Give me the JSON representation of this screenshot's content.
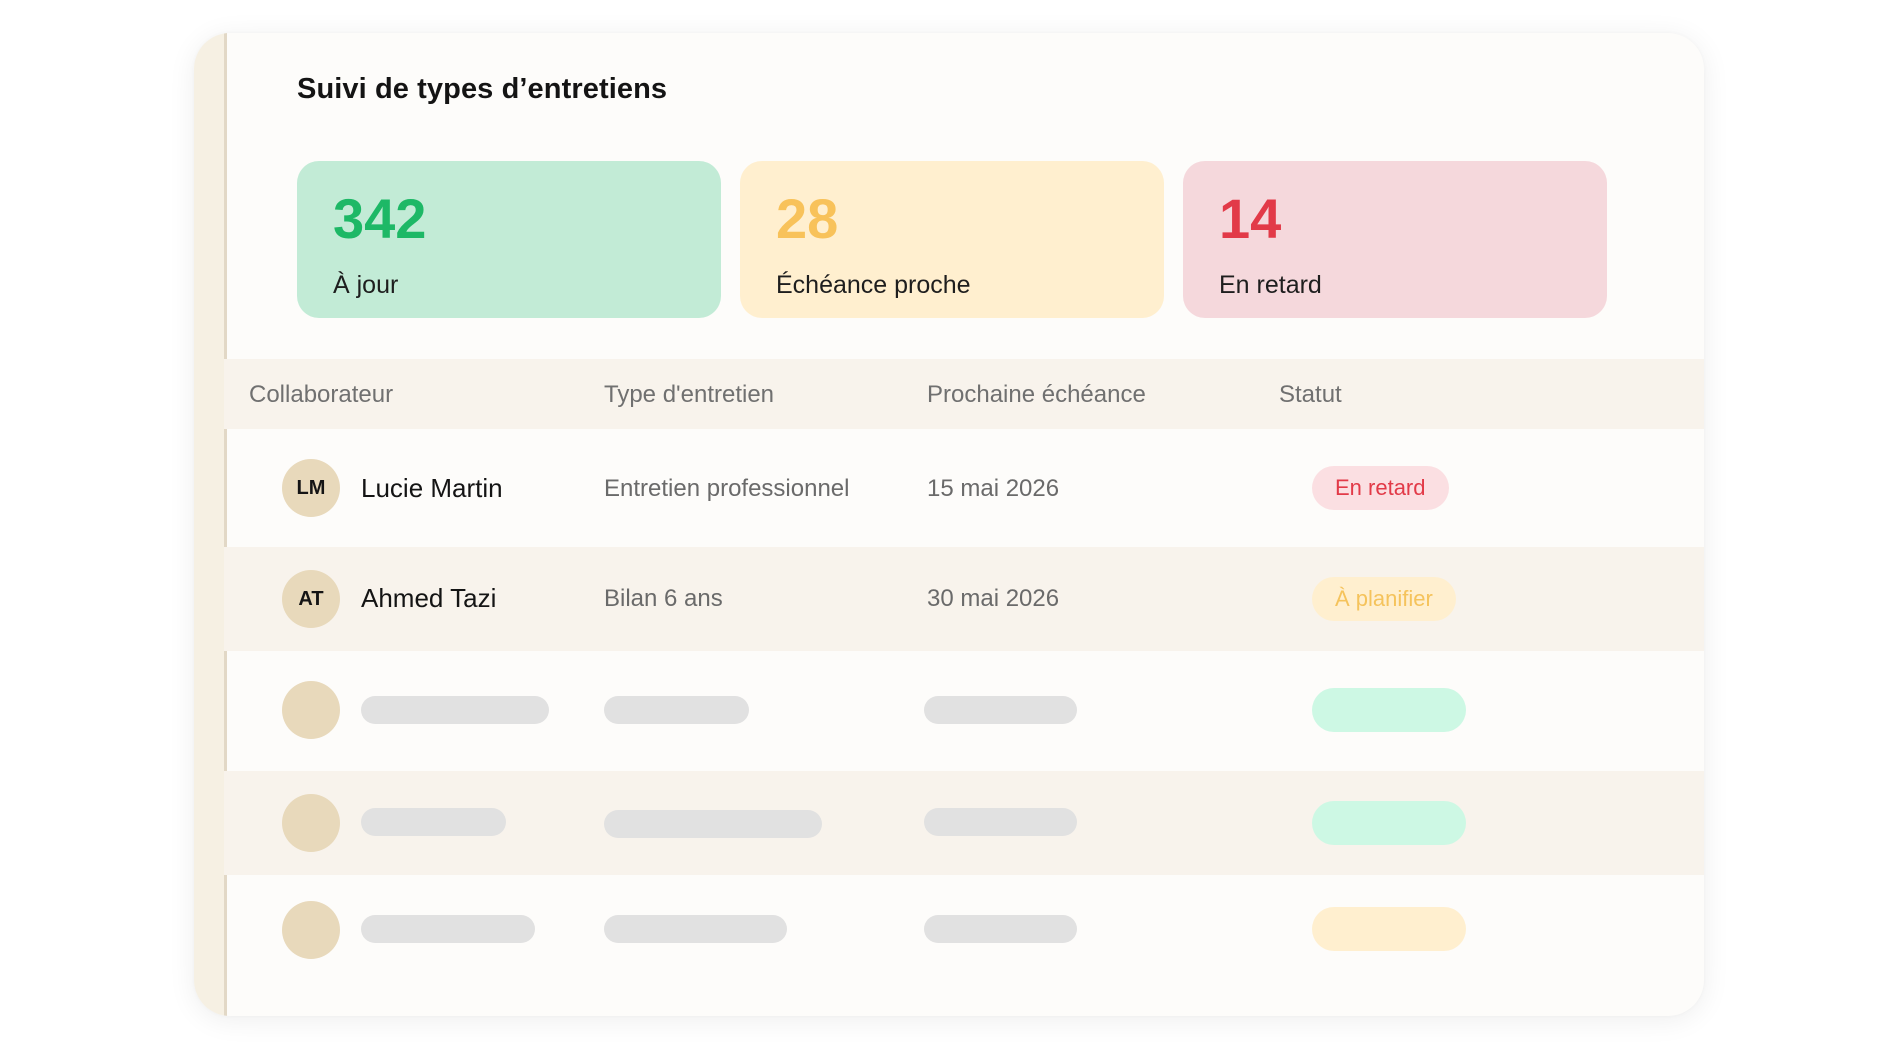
{
  "page": {
    "title": "Suivi de types d’entretiens"
  },
  "stats": [
    {
      "value": "342",
      "label": "À jour",
      "bg": "#c2ebd6",
      "fg": "#1db866"
    },
    {
      "value": "28",
      "label": "Échéance proche",
      "bg": "#ffefcf",
      "fg": "#f8c25a"
    },
    {
      "value": "14",
      "label": "En retard",
      "bg": "#f5d8dc",
      "fg": "#e23a48"
    }
  ],
  "table": {
    "headers": {
      "collaborator": "Collaborateur",
      "type": "Type d'entretien",
      "due": "Prochaine échéance",
      "status": "Statut"
    },
    "rows": [
      {
        "initials": "LM",
        "name": "Lucie Martin",
        "type": "Entretien professionnel",
        "due": "15 mai 2026",
        "status": "En retard",
        "status_bg": "#fbdfe2",
        "status_fg": "#e23a48"
      },
      {
        "initials": "AT",
        "name": "Ahmed Tazi",
        "type": "Bilan 6 ans",
        "due": "30 mai 2026",
        "status": "À planifier",
        "status_bg": "#ffefcf",
        "status_fg": "#f5c35c"
      }
    ]
  },
  "placeholder_status_colors": [
    "#cdf8e4",
    "#cdf8e4",
    "#ffefcf"
  ]
}
